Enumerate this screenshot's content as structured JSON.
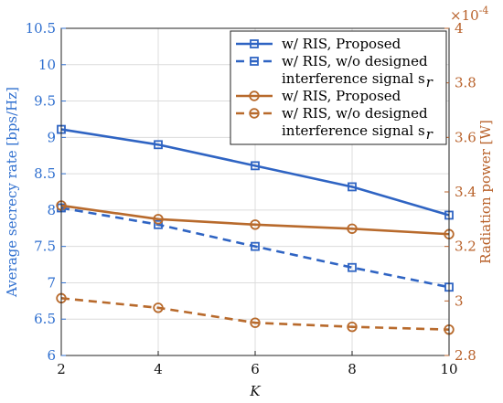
{
  "chart_data": {
    "type": "line",
    "x": [
      2,
      4,
      6,
      8,
      10
    ],
    "xlabel": "K",
    "ylabel_left": "Average secrecy rate [bps/Hz]",
    "ylabel_right": "Radiation power  [W]",
    "right_exponent": "×10",
    "right_exponent_power": "-4",
    "xlim": [
      2,
      10
    ],
    "ylim_left": [
      6,
      10.5
    ],
    "ylim_right": [
      2.8,
      4.0
    ],
    "right_scale": 0.0001,
    "xticks": [
      "2",
      "4",
      "6",
      "8",
      "10"
    ],
    "yticks_left": [
      "6",
      "6.5",
      "7",
      "7.5",
      "8",
      "8.5",
      "9",
      "9.5",
      "10",
      "10.5"
    ],
    "yticks_right": [
      "2.8",
      "3",
      "3.2",
      "3.4",
      "3.6",
      "3.8",
      "4"
    ],
    "grid": true,
    "legend_position": "top-right",
    "colors": {
      "left_axis": "#2f6fcf",
      "right_axis": "#b8612a",
      "blue": "#2f64c3",
      "orange": "#b86a2c",
      "grid": "#dcdcdc"
    },
    "series": [
      {
        "axis": "left",
        "color": "#2f64c3",
        "dash": false,
        "marker": "square",
        "values": [
          9.11,
          8.9,
          8.61,
          8.32,
          7.93
        ]
      },
      {
        "axis": "left",
        "color": "#2f64c3",
        "dash": true,
        "marker": "square",
        "values": [
          8.03,
          7.8,
          7.5,
          7.21,
          6.94
        ]
      },
      {
        "axis": "right",
        "color": "#b86a2c",
        "dash": false,
        "marker": "circle",
        "values": [
          3.35,
          3.3,
          3.28,
          3.265,
          3.245
        ]
      },
      {
        "axis": "right",
        "color": "#b86a2c",
        "dash": true,
        "marker": "circle",
        "values": [
          3.01,
          2.975,
          2.92,
          2.905,
          2.895
        ]
      }
    ],
    "legend": [
      {
        "lines": [
          "w/ RIS, Proposed"
        ]
      },
      {
        "lines": [
          "w/ RIS, w/o designed",
          "interference signal s"
        ],
        "sub": "r"
      },
      {
        "lines": [
          "w/ RIS, Proposed"
        ]
      },
      {
        "lines": [
          "w/ RIS, w/o designed",
          "interference signal s"
        ],
        "sub": "r"
      }
    ]
  }
}
